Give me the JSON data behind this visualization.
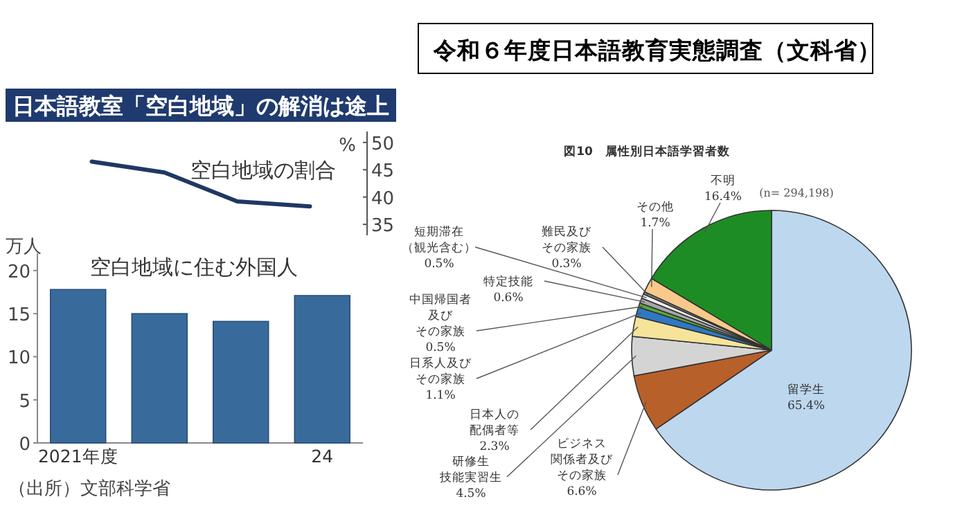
{
  "chart_data": [
    {
      "type": "line",
      "title": "日本語教室「空白地域」の解消は途上",
      "ylabel": "%",
      "categories": [
        null,
        null,
        null,
        null
      ],
      "series": [
        {
          "name": "空白地域の割合",
          "color": "#1f3864",
          "values": [
            46.5,
            44.5,
            39.2,
            38.3
          ]
        }
      ],
      "ylim": [
        33,
        52
      ],
      "yticks": [
        35,
        40,
        45,
        50
      ],
      "marker": "none"
    },
    {
      "type": "bar",
      "title": "空白地域に住む外国人",
      "ylabel": "万人",
      "categories": [
        "2021年度",
        null,
        null,
        "24"
      ],
      "values": [
        17.8,
        15.0,
        14.1,
        17.1
      ],
      "color": "#396a9c",
      "ylim": [
        0,
        22
      ],
      "yticks": [
        0,
        5,
        10,
        15,
        20
      ],
      "annotations": [
        "（出所）文部科学省"
      ]
    },
    {
      "type": "pie",
      "title": "令和６年度日本語教育実態調査（文科省）",
      "subtitle": "図10　属性別日本語学習者数",
      "annotations": [
        "(n= 294,198)"
      ],
      "categories": [
        "留学生",
        "ビジネス関係者及びその家族",
        "研修生技能実習生",
        "日本人の配偶者等",
        "日系人及びその家族",
        "中国帰国者及びその家族",
        "特定技能",
        "短期滞在（観光含む）",
        "難民及びその家族",
        "その他",
        "不明"
      ],
      "values": [
        65.4,
        6.6,
        4.5,
        2.3,
        1.1,
        0.5,
        0.6,
        0.5,
        0.3,
        1.7,
        16.4
      ],
      "colors": [
        "#bdd7ee",
        "#b8602a",
        "#d4d4d4",
        "#f5e49a",
        "#2f78c4",
        "#5aa83c",
        "#a6a6a6",
        "#eeeeee",
        "#7f7f7f",
        "#f8c98a",
        "#1e8c24"
      ],
      "value_labels": [
        "65.4%",
        "6.6%",
        "4.5%",
        "2.3%",
        "1.1%",
        "0.5%",
        "0.6%",
        "0.5%",
        "0.3%",
        "1.7%",
        "16.4%"
      ]
    }
  ]
}
